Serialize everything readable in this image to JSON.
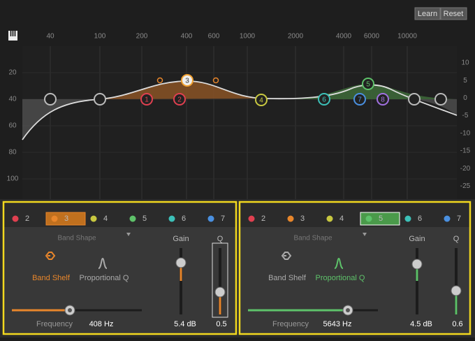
{
  "toolbar": {
    "learn": "Learn",
    "reset": "Reset"
  },
  "graph": {
    "freq_labels": [
      "40",
      "100",
      "200",
      "400",
      "600",
      "1000",
      "2000",
      "4000",
      "6000",
      "10000"
    ],
    "left_labels": [
      "20",
      "40",
      "60",
      "80",
      "100"
    ],
    "right_labels": [
      "10",
      "5",
      "0",
      "-5",
      "-10",
      "-15",
      "-20",
      "-25"
    ],
    "nodes": [
      "1",
      "2",
      "3",
      "4",
      "5",
      "6",
      "7",
      "8"
    ]
  },
  "panels": [
    {
      "tabs": [
        "2",
        "3",
        "4",
        "5",
        "6",
        "7"
      ],
      "band_shape": "Band Shape",
      "gain_label": "Gain",
      "q_label": "Q",
      "shapes": [
        "Band Shelf",
        "Proportional Q"
      ],
      "frequency_label": "Frequency",
      "frequency": "408 Hz",
      "gain": "5.4 dB",
      "q": "0.5"
    },
    {
      "tabs": [
        "2",
        "3",
        "4",
        "5",
        "6",
        "7"
      ],
      "band_shape": "Band Shape",
      "gain_label": "Gain",
      "q_label": "Q",
      "shapes": [
        "Band Shelf",
        "Proportional Q"
      ],
      "frequency_label": "Frequency",
      "frequency": "5643 Hz",
      "gain": "4.5 dB",
      "q": "0.6"
    }
  ]
}
